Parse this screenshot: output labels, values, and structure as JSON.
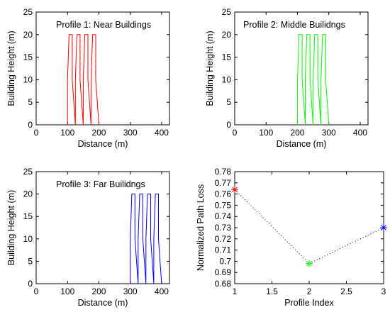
{
  "chart_data": [
    {
      "type": "line",
      "annotation": "Profile 1: Near Buildings",
      "xlabel": "Distance (m)",
      "ylabel": "Building Height (m)",
      "xlim": [
        0,
        425
      ],
      "ylim": [
        0,
        25
      ],
      "xticks": [
        0,
        100,
        200,
        300,
        400
      ],
      "yticks": [
        0,
        5,
        10,
        15,
        20,
        25
      ],
      "color": "#ff0000",
      "grid": false,
      "x": [
        100,
        100,
        105,
        110,
        115,
        115,
        125,
        125,
        130,
        135,
        140,
        140,
        150,
        150,
        155,
        160,
        165,
        165,
        175,
        175,
        180,
        185,
        190,
        190,
        200,
        200
      ],
      "y": [
        0,
        10,
        20,
        20,
        20,
        10,
        0,
        10,
        20,
        20,
        20,
        10,
        0,
        10,
        20,
        20,
        20,
        10,
        0,
        10,
        20,
        20,
        20,
        10,
        0,
        0
      ]
    },
    {
      "type": "line",
      "annotation": "Profile 2: Middle Builidngs",
      "xlabel": "Distance (m)",
      "ylabel": "Building Height (m)",
      "xlim": [
        0,
        425
      ],
      "ylim": [
        0,
        25
      ],
      "xticks": [
        0,
        100,
        200,
        300,
        400
      ],
      "yticks": [
        0,
        5,
        10,
        15,
        20,
        25
      ],
      "color": "#00ff00",
      "grid": false,
      "x": [
        200,
        200,
        205,
        210,
        215,
        215,
        225,
        225,
        230,
        235,
        240,
        240,
        250,
        250,
        255,
        260,
        265,
        265,
        275,
        275,
        280,
        285,
        290,
        290,
        300,
        300
      ],
      "y": [
        0,
        10,
        20,
        20,
        20,
        10,
        0,
        10,
        20,
        20,
        20,
        10,
        0,
        10,
        20,
        20,
        20,
        10,
        0,
        10,
        20,
        20,
        20,
        10,
        0,
        0
      ]
    },
    {
      "type": "line",
      "annotation": "Profile 3: Far Builidngs",
      "xlabel": "Distance (m)",
      "ylabel": "Building Height (m)",
      "xlim": [
        0,
        425
      ],
      "ylim": [
        0,
        25
      ],
      "xticks": [
        0,
        100,
        200,
        300,
        400
      ],
      "yticks": [
        0,
        5,
        10,
        15,
        20,
        25
      ],
      "color": "#0000ff",
      "grid": false,
      "x": [
        300,
        300,
        305,
        310,
        315,
        315,
        325,
        325,
        330,
        335,
        340,
        340,
        350,
        350,
        355,
        360,
        365,
        365,
        375,
        375,
        380,
        385,
        390,
        390,
        400,
        400
      ],
      "y": [
        0,
        10,
        20,
        20,
        20,
        10,
        0,
        10,
        20,
        20,
        20,
        10,
        0,
        10,
        20,
        20,
        20,
        10,
        0,
        10,
        20,
        20,
        20,
        10,
        0,
        0
      ]
    },
    {
      "type": "scatter",
      "xlabel": "Profile Index",
      "ylabel": "Normalized Path Loss",
      "xlim": [
        1,
        3
      ],
      "ylim": [
        0.68,
        0.78
      ],
      "xticks": [
        1,
        1.5,
        2,
        2.5,
        3
      ],
      "yticks": [
        0.68,
        0.69,
        0.7,
        0.71,
        0.72,
        0.73,
        0.74,
        0.75,
        0.76,
        0.77,
        0.78
      ],
      "grid": false,
      "line_style": "dotted",
      "points": [
        {
          "x": 1,
          "y": 0.764,
          "color": "#ff0000",
          "marker": "asterisk"
        },
        {
          "x": 2,
          "y": 0.698,
          "color": "#00ff00",
          "marker": "asterisk"
        },
        {
          "x": 3,
          "y": 0.73,
          "color": "#0000ff",
          "marker": "asterisk"
        }
      ]
    }
  ]
}
